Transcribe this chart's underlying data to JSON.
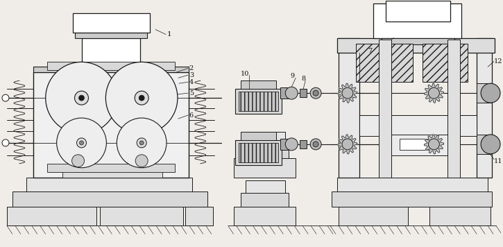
{
  "bg_color": "#f0ede8",
  "line_color": "#1a1a1a",
  "label_color": "#111111",
  "fig_width": 7.25,
  "fig_height": 3.56,
  "dpi": 100
}
